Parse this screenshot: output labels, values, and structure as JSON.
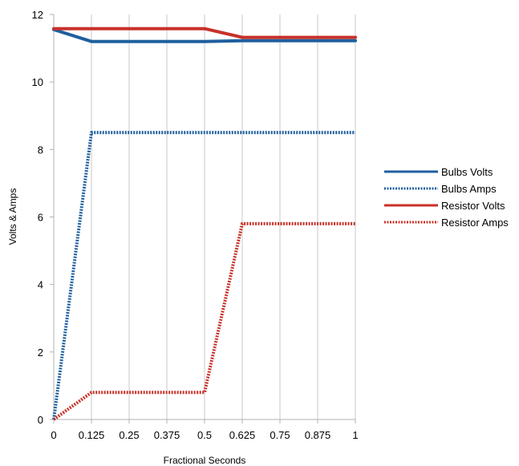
{
  "chart_data": {
    "type": "line",
    "title": "",
    "xlabel": "Fractional Seconds",
    "ylabel": "Volts & Amps",
    "x": [
      0,
      0.125,
      0.25,
      0.375,
      0.5,
      0.625,
      0.75,
      0.875,
      1
    ],
    "x_tick_labels": [
      "0",
      "0.125",
      "0.25",
      "0.375",
      "0.5",
      "0.625",
      "0.75",
      "0.875",
      "1"
    ],
    "y_ticks": [
      0,
      2,
      4,
      6,
      8,
      10,
      12
    ],
    "y_tick_labels": [
      "0",
      "2",
      "4",
      "6",
      "8",
      "10",
      "12"
    ],
    "ylim": [
      0,
      12
    ],
    "xlim": [
      0,
      1
    ],
    "grid": "vertical",
    "legend_position": "right",
    "series": [
      {
        "name": "Bulbs Volts",
        "style": "solid",
        "color": "#1f5f9e",
        "values": [
          11.55,
          11.2,
          11.2,
          11.2,
          11.2,
          11.22,
          11.22,
          11.22,
          11.22
        ]
      },
      {
        "name": "Bulbs Amps",
        "style": "dotted",
        "color": "#1f5f9e",
        "values": [
          0,
          8.5,
          8.5,
          8.5,
          8.5,
          8.5,
          8.5,
          8.5,
          8.5
        ]
      },
      {
        "name": "Resistor Volts",
        "style": "solid",
        "color": "#c8312a",
        "values": [
          11.58,
          11.58,
          11.58,
          11.58,
          11.58,
          11.32,
          11.32,
          11.32,
          11.32
        ]
      },
      {
        "name": "Resistor Amps",
        "style": "dotted",
        "color": "#c8312a",
        "values": [
          0,
          0.8,
          0.8,
          0.8,
          0.8,
          5.8,
          5.8,
          5.8,
          5.8
        ]
      }
    ]
  }
}
